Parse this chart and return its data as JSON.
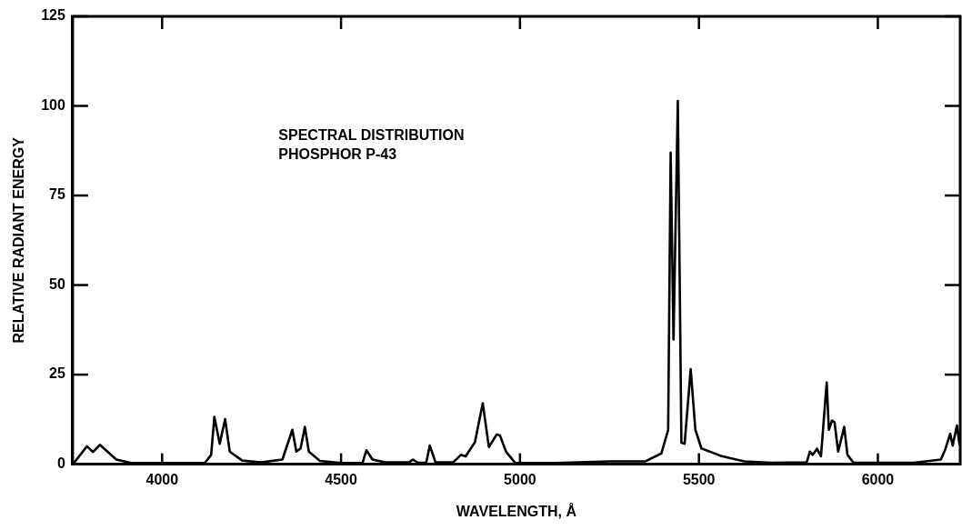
{
  "chart_data": {
    "type": "line",
    "title": "SPECTRAL DISTRIBUTION",
    "subtitle": "PHOSPHOR P-43",
    "xlabel": "WAVELENGTH, Å",
    "ylabel": "RELATIVE RADIANT ENERGY",
    "xlim": [
      3750,
      6230
    ],
    "ylim": [
      0,
      125
    ],
    "xticks": [
      4000,
      4500,
      5000,
      5500,
      6000
    ],
    "yticks": [
      0,
      25,
      50,
      75,
      100,
      125
    ],
    "marker": "none",
    "line_style": "solid",
    "series": [
      {
        "color": "#000000",
        "x": [
          3751,
          3790,
          3807,
          3826,
          3872,
          3911,
          4000,
          4120,
          4137,
          4146,
          4161,
          4176,
          4189,
          4224,
          4276,
          4336,
          4364,
          4375,
          4387,
          4399,
          4410,
          4441,
          4500,
          4560,
          4571,
          4588,
          4623,
          4690,
          4701,
          4715,
          4738,
          4748,
          4764,
          4813,
          4835,
          4848,
          4874,
          4896,
          4913,
          4935,
          4944,
          4961,
          4987,
          5100,
          5250,
          5351,
          5395,
          5414,
          5421,
          5429,
          5441,
          5451,
          5460,
          5477,
          5490,
          5507,
          5559,
          5596,
          5627,
          5700,
          5801,
          5810,
          5818,
          5830,
          5841,
          5857,
          5863,
          5872,
          5879,
          5889,
          5906,
          5915,
          5932,
          6000,
          6100,
          6176,
          6189,
          6202,
          6209,
          6221,
          6228
        ],
        "values": [
          0,
          5,
          3.4,
          5.4,
          1.3,
          0.4,
          0.3,
          0.4,
          2.6,
          13.2,
          5.7,
          12.6,
          3.5,
          1,
          0.5,
          1.3,
          9.6,
          3.5,
          4.4,
          10.4,
          3.5,
          0.9,
          0.3,
          0.4,
          3.9,
          1.3,
          0.5,
          0.5,
          1.3,
          0.4,
          0.4,
          5.2,
          0.5,
          0.5,
          2.6,
          2.2,
          6.1,
          17,
          4.8,
          8.3,
          8,
          3.5,
          0.3,
          0.3,
          0.8,
          0.8,
          3,
          9.6,
          87,
          34.8,
          101.4,
          6,
          5.7,
          26.5,
          9.6,
          4.4,
          2.4,
          1.5,
          0.8,
          0.4,
          0.5,
          3.5,
          2.6,
          4.3,
          2.2,
          22.8,
          9.6,
          12.2,
          11.7,
          3.5,
          10.4,
          2.6,
          0.4,
          0.4,
          0.4,
          1.3,
          4.3,
          8.5,
          5.2,
          10.8,
          5.5
        ]
      }
    ]
  }
}
